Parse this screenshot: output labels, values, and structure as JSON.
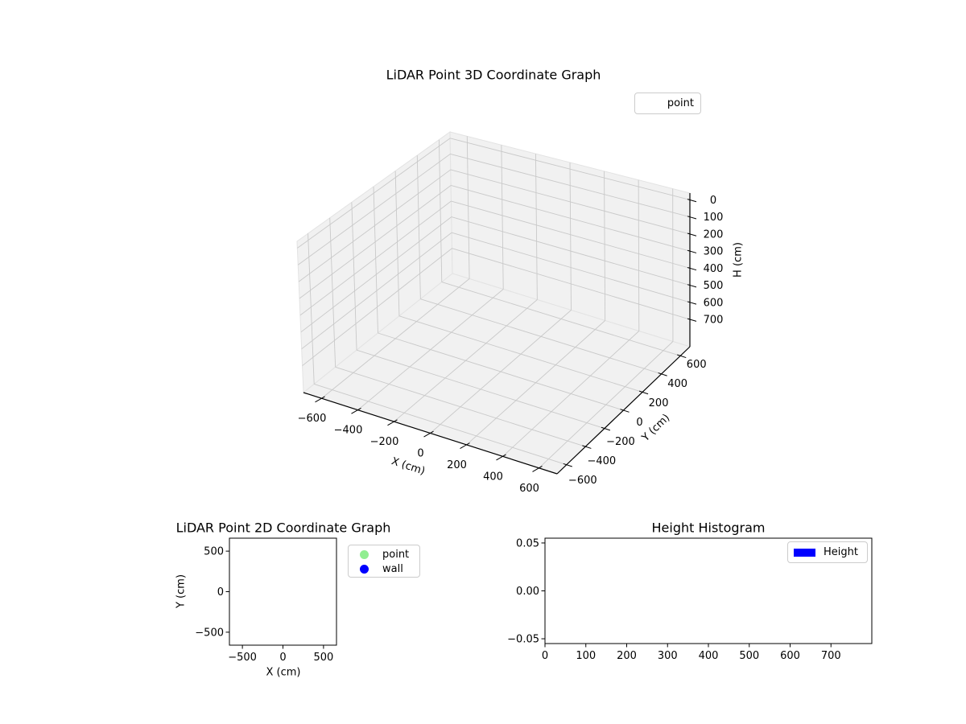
{
  "figure": {
    "background": "#ffffff",
    "text_color": "#000000"
  },
  "chart_data": [
    {
      "id": "lidar-3d",
      "type": "scatter",
      "projection": "3d",
      "title": "LiDAR Point 3D Coordinate Graph",
      "xlabel": "X (cm)",
      "ylabel": "Y (cm)",
      "zlabel": "H (cm)",
      "xlim": [
        -700,
        700
      ],
      "ylim": [
        -700,
        700
      ],
      "zlim": [
        -40,
        860
      ],
      "z_axis_inverted": true,
      "grid": true,
      "pane_color": "#f1f1f1",
      "pane_edge_color": "#e3e3e3",
      "grid_color": "#c9c9c9",
      "x_ticks": {
        "values": [
          -600,
          -400,
          -200,
          0,
          200,
          400,
          600
        ],
        "labels": [
          "−600",
          "−400",
          "−200",
          "0",
          "200",
          "400",
          "600"
        ]
      },
      "y_ticks": {
        "values": [
          -600,
          -400,
          -200,
          0,
          200,
          400,
          600
        ],
        "labels": [
          "−600",
          "−400",
          "−200",
          "0",
          "200",
          "400",
          "600"
        ]
      },
      "z_ticks": {
        "values": [
          0,
          100,
          200,
          300,
          400,
          500,
          600,
          700
        ],
        "labels": [
          "0",
          "100",
          "200",
          "300",
          "400",
          "500",
          "600",
          "700"
        ]
      },
      "legend": {
        "position": "upper right",
        "entries": [
          {
            "label": "point",
            "marker": "none"
          }
        ]
      },
      "series": [
        {
          "name": "point",
          "points": []
        }
      ]
    },
    {
      "id": "lidar-2d",
      "type": "scatter",
      "title": "LiDAR Point 2D Coordinate Graph",
      "xlabel": "X (cm)",
      "ylabel": "Y (cm)",
      "xlim": [
        -660,
        660
      ],
      "ylim": [
        -660,
        660
      ],
      "grid": false,
      "x_ticks": {
        "values": [
          -500,
          0,
          500
        ],
        "labels": [
          "−500",
          "0",
          "500"
        ]
      },
      "y_ticks": {
        "values": [
          500,
          0,
          -500
        ],
        "labels": [
          "500",
          "0",
          "−500"
        ]
      },
      "legend": {
        "position": "upper right",
        "entries": [
          {
            "label": "point",
            "marker": "circle",
            "color": "#90ee90"
          },
          {
            "label": "wall",
            "marker": "circle",
            "color": "#0000ff"
          }
        ]
      },
      "series": [
        {
          "name": "point",
          "points": []
        },
        {
          "name": "wall",
          "points": []
        }
      ]
    },
    {
      "id": "height-histogram",
      "type": "bar",
      "title": "Height Histogram",
      "xlabel": "",
      "ylabel": "",
      "xlim": [
        0,
        800
      ],
      "ylim": [
        -0.055,
        0.055
      ],
      "grid": false,
      "x_ticks": {
        "values": [
          0,
          100,
          200,
          300,
          400,
          500,
          600,
          700
        ],
        "labels": [
          "0",
          "100",
          "200",
          "300",
          "400",
          "500",
          "600",
          "700"
        ]
      },
      "y_ticks": {
        "values": [
          0.05,
          0,
          -0.05
        ],
        "labels": [
          "0.05",
          "0.00",
          "−0.05"
        ]
      },
      "legend": {
        "position": "upper right",
        "entries": [
          {
            "label": "Height",
            "marker": "rect",
            "color": "#0000ff"
          }
        ]
      },
      "values": []
    }
  ]
}
